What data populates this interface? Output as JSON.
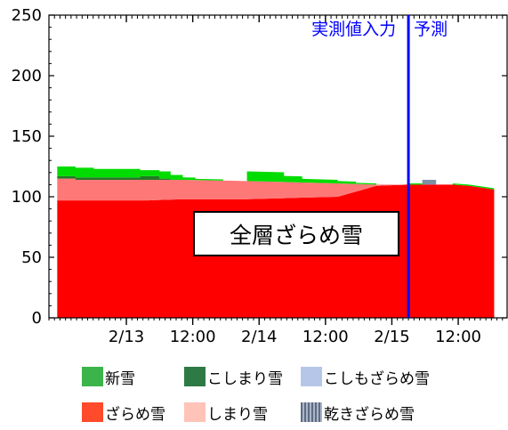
{
  "chart_data": {
    "type": "area",
    "title": "",
    "xlabel": "",
    "ylabel": "",
    "ylim": [
      0,
      250
    ],
    "yticks": [
      0,
      50,
      100,
      150,
      200,
      250
    ],
    "xlim_hours": [
      -14,
      69
    ],
    "xticks": [
      {
        "hour": 0,
        "label": "2/13"
      },
      {
        "hour": 12,
        "label": "12:00"
      },
      {
        "hour": 24,
        "label": "2/14"
      },
      {
        "hour": 36,
        "label": "12:00"
      },
      {
        "hour": 48,
        "label": "2/15"
      },
      {
        "hour": 60,
        "label": "12:00"
      }
    ],
    "divider_hour": 51,
    "divider_color": "#0000ff",
    "region_labels": {
      "left": "実測値入力",
      "right": "予測"
    },
    "annotation": "全層ざらめ雪",
    "layer_order_bottom_up": [
      "ざらめ雪",
      "しまり雪",
      "乾きざらめ雪",
      "こしまり雪",
      "新雪"
    ],
    "colors": {
      "新雪": "#00dc00",
      "こしまり雪": "#237a23",
      "こしもざらめ雪": "#b0c4e6",
      "ざらめ雪": "#ff0000",
      "しまり雪": "#ff7878",
      "乾きざらめ雪": "#7f8fa5"
    },
    "series": [
      {
        "name": "ざらめ雪",
        "x": [
          -12.5,
          -9.2,
          -9.2,
          -5.9,
          -5.9,
          3.8,
          3.8,
          10.2,
          10.2,
          21.8,
          21.8,
          38.2,
          38.2,
          45.2,
          45.2,
          51,
          51,
          59,
          59,
          62,
          62,
          66.5
        ],
        "values": [
          97,
          97,
          97,
          97,
          97,
          97,
          97,
          98,
          98,
          98,
          98,
          100,
          100,
          109,
          109,
          110,
          110,
          110,
          110,
          109,
          109,
          106
        ]
      },
      {
        "name": "しまり雪",
        "x": [
          -12.5,
          -9.2,
          -9.2,
          -5.9,
          -5.9,
          3.8,
          3.8,
          10.2,
          10.2,
          21.8,
          21.8,
          38.2,
          38.2,
          45.2,
          45.2,
          51,
          51,
          59,
          59,
          62,
          62,
          66.5
        ],
        "values": [
          18,
          18,
          17,
          17,
          17,
          17,
          17,
          16,
          16,
          15,
          15,
          11,
          11,
          1,
          1,
          0,
          0,
          0,
          0,
          0,
          0,
          0
        ]
      },
      {
        "name": "乾きざらめ雪",
        "x": [
          -12.5,
          51,
          51,
          53.5,
          53.5,
          56,
          56,
          66.5
        ],
        "values": [
          0,
          0,
          0,
          0,
          4,
          4,
          0,
          0
        ]
      },
      {
        "name": "こしまり雪",
        "x": [
          -12.5,
          -5.9,
          -5.9,
          2.5,
          2.5,
          6,
          6,
          8,
          8,
          66.5
        ],
        "values": [
          2,
          2,
          2,
          2,
          3,
          3,
          1,
          1,
          0,
          0
        ]
      },
      {
        "name": "新雪",
        "x": [
          -12.5,
          -9.2,
          -9.2,
          -5.9,
          -5.9,
          2.5,
          2.5,
          6,
          6,
          8,
          8,
          10.2,
          10.2,
          12.5,
          12.5,
          17.5,
          17.5,
          21.8,
          21.8,
          28.5,
          28.5,
          31.8,
          31.8,
          38.2,
          38.2,
          41.5,
          41.5,
          45.2,
          45.2,
          51,
          51,
          53.5,
          53.5,
          56,
          56,
          59,
          59,
          62,
          62,
          66.5
        ],
        "values": [
          8,
          8,
          8,
          8,
          7,
          7,
          5,
          5,
          6,
          6,
          4,
          4,
          2,
          2,
          1,
          1,
          0,
          0,
          8,
          8,
          5,
          5,
          3,
          3,
          2,
          2,
          1,
          1,
          0,
          0,
          1,
          1,
          0,
          0,
          0,
          0,
          1,
          1,
          1,
          1
        ]
      }
    ],
    "legend": [
      {
        "label": "新雪",
        "key": "新雪"
      },
      {
        "label": "こしまり雪",
        "key": "こしまり雪"
      },
      {
        "label": "こしもざらめ雪",
        "key": "こしもざらめ雪"
      },
      {
        "label": "ざらめ雪",
        "key": "ざらめ雪"
      },
      {
        "label": "しまり雪",
        "key": "しまり雪"
      },
      {
        "label": "乾きざらめ雪",
        "key": "乾きざらめ雪"
      }
    ]
  }
}
